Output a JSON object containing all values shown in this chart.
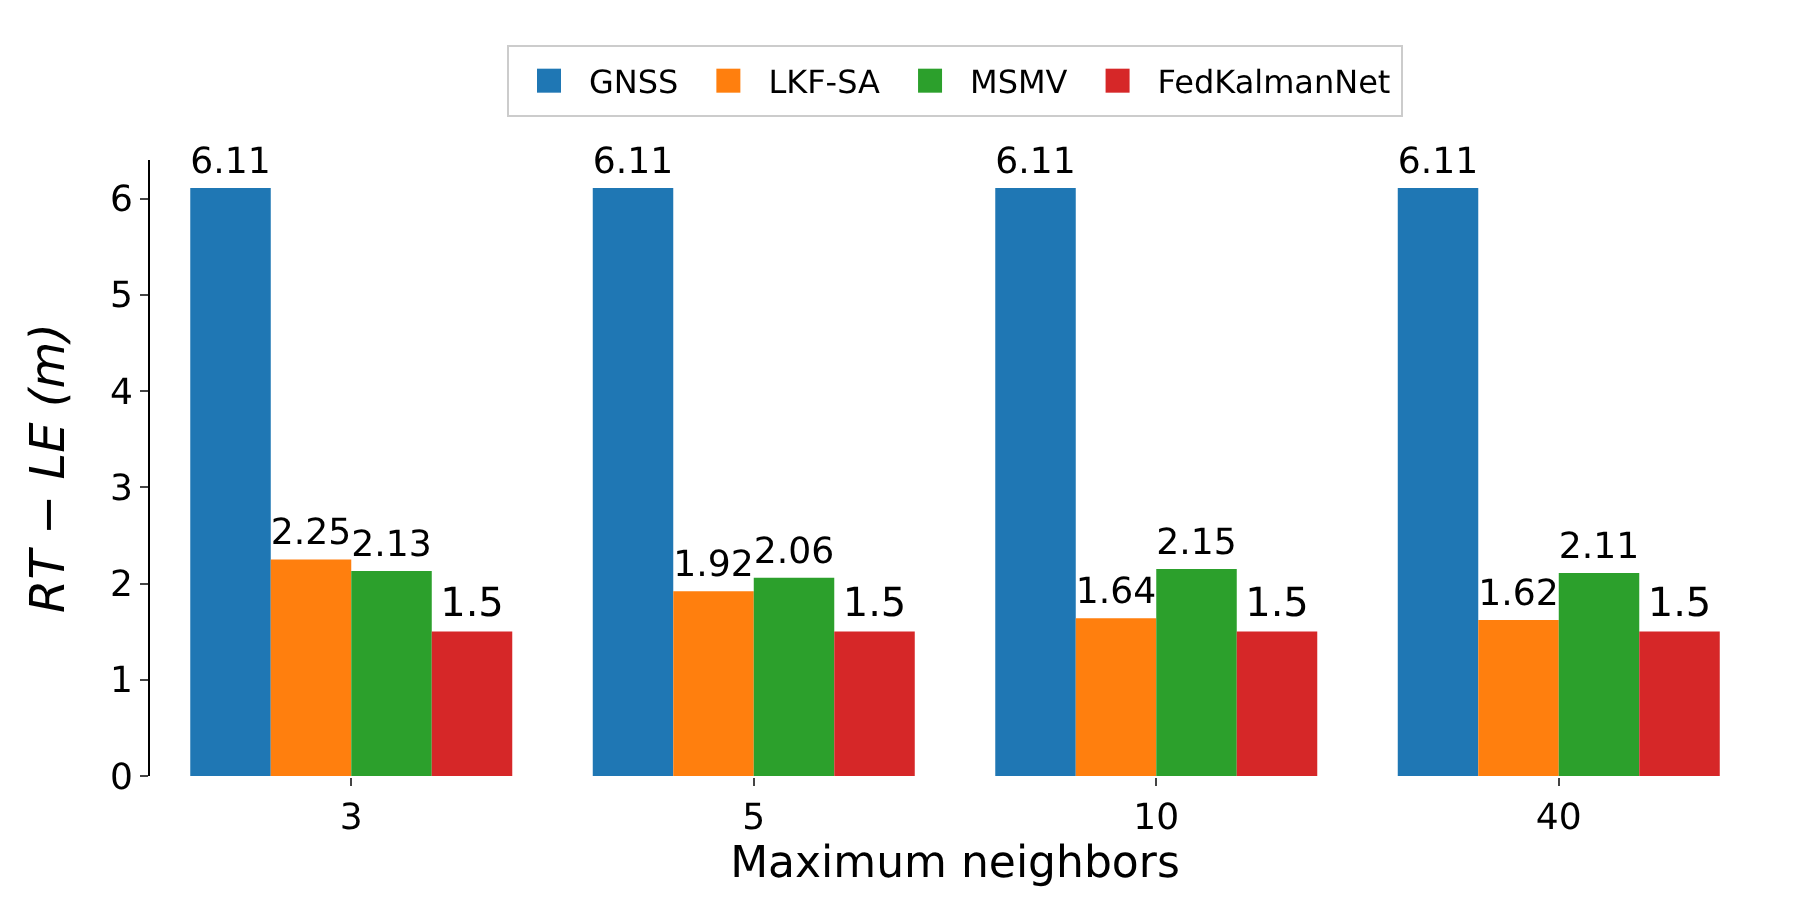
{
  "chart_data": {
    "type": "bar",
    "xlabel": "Maximum neighbors",
    "ylabel": "RT − LE (m)",
    "categories": [
      "3",
      "5",
      "10",
      "40"
    ],
    "series": [
      {
        "name": "GNSS",
        "color": "#1f77b4",
        "values": [
          6.11,
          6.11,
          6.11,
          6.11
        ]
      },
      {
        "name": "LKF-SA",
        "color": "#ff7f0e",
        "values": [
          2.25,
          1.92,
          1.64,
          1.62
        ]
      },
      {
        "name": "MSMV",
        "color": "#2ca02c",
        "values": [
          2.13,
          2.06,
          2.15,
          2.11
        ]
      },
      {
        "name": "FedKalmanNet",
        "color": "#d62728",
        "values": [
          1.5,
          1.5,
          1.5,
          1.5
        ]
      }
    ],
    "ylim": [
      0,
      6.4
    ],
    "yticks": [
      0,
      1,
      2,
      3,
      4,
      5,
      6
    ],
    "data_labels": true,
    "legend": "top"
  }
}
